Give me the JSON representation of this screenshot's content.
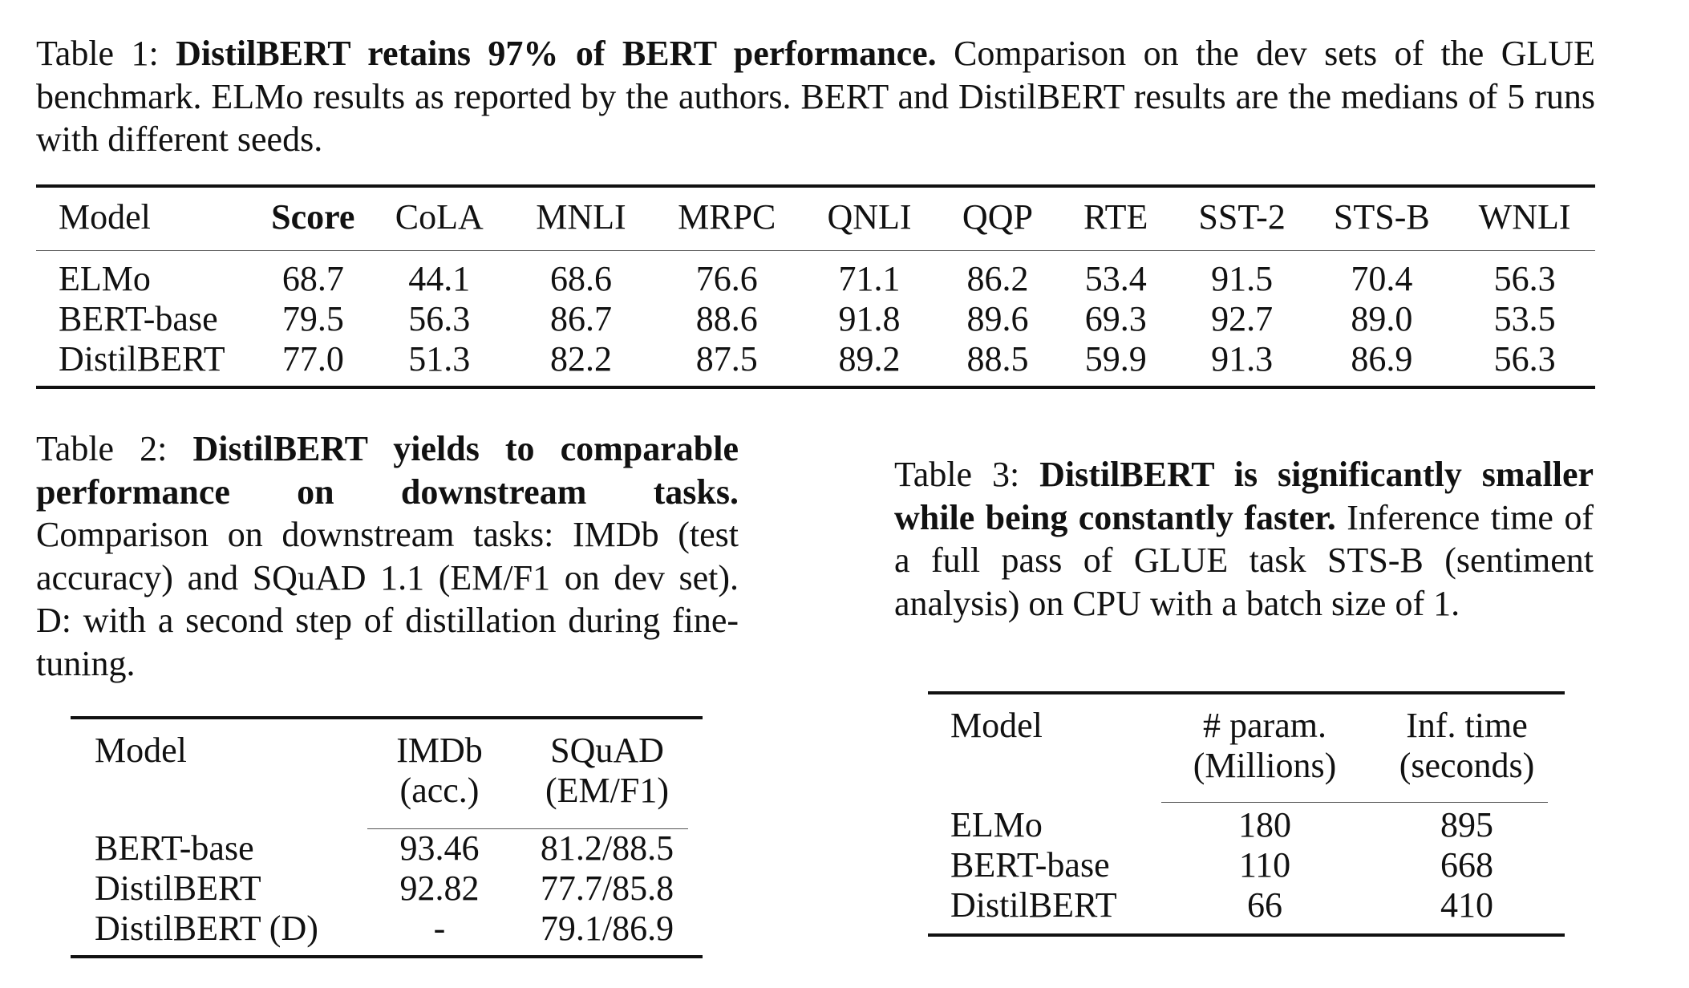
{
  "table1": {
    "label": "Table 1:",
    "title": "DistilBERT retains 97% of BERT performance.",
    "text": "Comparison on the dev sets of the GLUE benchmark. ELMo results as reported by the authors. BERT and DistilBERT results are the medians of 5 runs with different seeds.",
    "headers": [
      "Model",
      "Score",
      "CoLA",
      "MNLI",
      "MRPC",
      "QNLI",
      "QQP",
      "RTE",
      "SST-2",
      "STS-B",
      "WNLI"
    ],
    "rows": [
      [
        "ELMo",
        "68.7",
        "44.1",
        "68.6",
        "76.6",
        "71.1",
        "86.2",
        "53.4",
        "91.5",
        "70.4",
        "56.3"
      ],
      [
        "BERT-base",
        "79.5",
        "56.3",
        "86.7",
        "88.6",
        "91.8",
        "89.6",
        "69.3",
        "92.7",
        "89.0",
        "53.5"
      ],
      [
        "DistilBERT",
        "77.0",
        "51.3",
        "82.2",
        "87.5",
        "89.2",
        "88.5",
        "59.9",
        "91.3",
        "86.9",
        "56.3"
      ]
    ]
  },
  "table2": {
    "label": "Table 2:",
    "title": "DistilBERT yields to comparable performance on downstream tasks.",
    "text": "Comparison on downstream tasks: IMDb (test accuracy) and SQuAD 1.1 (EM/F1 on dev set). D: with a second step of distillation during fine-tuning.",
    "headers": [
      [
        "Model"
      ],
      [
        "IMDb",
        "(acc.)"
      ],
      [
        "SQuAD",
        "(EM/F1)"
      ]
    ],
    "rows": [
      [
        "BERT-base",
        "93.46",
        "81.2/88.5"
      ],
      [
        "DistilBERT",
        "92.82",
        "77.7/85.8"
      ],
      [
        "DistilBERT (D)",
        "-",
        "79.1/86.9"
      ]
    ]
  },
  "table3": {
    "label": "Table 3:",
    "title": "DistilBERT is significantly smaller while being constantly faster.",
    "text": "Inference time of a full pass of GLUE task STS-B (sentiment analysis) on CPU with a batch size of 1.",
    "headers": [
      [
        "Model"
      ],
      [
        "# param.",
        "(Millions)"
      ],
      [
        "Inf. time",
        "(seconds)"
      ]
    ],
    "rows": [
      [
        "ELMo",
        "180",
        "895"
      ],
      [
        "BERT-base",
        "110",
        "668"
      ],
      [
        "DistilBERT",
        "66",
        "410"
      ]
    ]
  }
}
